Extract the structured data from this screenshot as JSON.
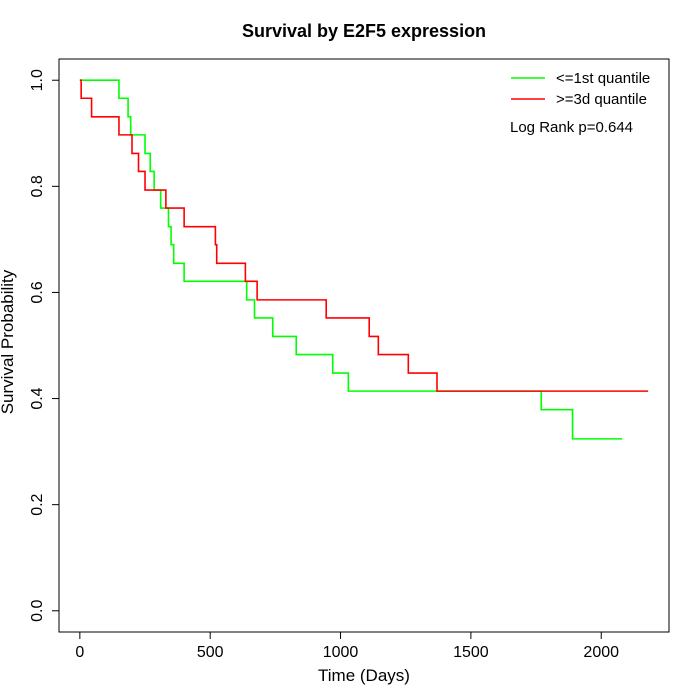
{
  "chart_data": {
    "type": "line",
    "title": "Survival by E2F5 expression",
    "xlabel": "Time (Days)",
    "ylabel": "Survival Probability",
    "xlim": [
      -80,
      2260
    ],
    "ylim": [
      -0.04,
      1.04
    ],
    "x_ticks": [
      0,
      500,
      1000,
      1500,
      2000
    ],
    "y_ticks": [
      0.0,
      0.2,
      0.4,
      0.6,
      0.8,
      1.0
    ],
    "x_tick_labels": [
      "0",
      "500",
      "1000",
      "1500",
      "2000"
    ],
    "y_tick_labels": [
      "0.0",
      "0.2",
      "0.4",
      "0.6",
      "0.8",
      "1.0"
    ],
    "grid": false,
    "legend_position": "top-right",
    "annotation": "Log Rank p=0.644",
    "series": [
      {
        "name": "<=1st quantile",
        "color": "#00ff00",
        "step": true,
        "x": [
          0,
          150,
          185,
          195,
          205,
          250,
          270,
          285,
          310,
          340,
          350,
          360,
          400,
          640,
          650,
          670,
          740,
          830,
          970,
          1030,
          1770,
          1890,
          2080
        ],
        "y": [
          1.0,
          0.966,
          0.931,
          0.897,
          0.897,
          0.862,
          0.828,
          0.793,
          0.759,
          0.724,
          0.69,
          0.655,
          0.621,
          0.586,
          0.586,
          0.552,
          0.517,
          0.483,
          0.448,
          0.414,
          0.379,
          0.324,
          0.324
        ]
      },
      {
        "name": ">=3d quantile",
        "color": "#ff0000",
        "step": true,
        "x": [
          0,
          5,
          45,
          150,
          200,
          225,
          250,
          270,
          330,
          380,
          400,
          520,
          525,
          635,
          680,
          945,
          1110,
          1145,
          1260,
          1370,
          2180
        ],
        "y": [
          1.0,
          0.966,
          0.931,
          0.897,
          0.862,
          0.828,
          0.793,
          0.793,
          0.759,
          0.759,
          0.724,
          0.69,
          0.655,
          0.621,
          0.586,
          0.552,
          0.517,
          0.483,
          0.448,
          0.414,
          0.414
        ]
      }
    ]
  }
}
